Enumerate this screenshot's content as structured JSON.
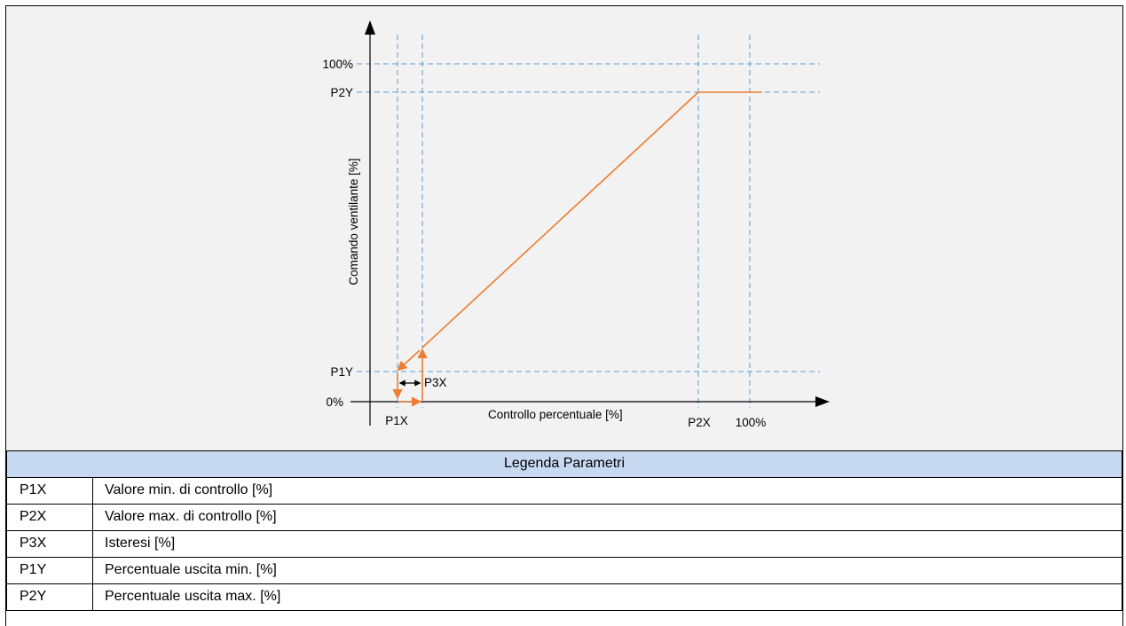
{
  "diagram": {
    "y_axis_label": "Comando ventilante [%]",
    "x_axis_label": "Controllo percentuale [%]",
    "y_ticks": {
      "p100": "100%",
      "p2y": "P2Y",
      "p1y": "P1Y",
      "p0": "0%"
    },
    "x_ticks": {
      "p1x": "P1X",
      "p2x": "P2X",
      "p100": "100%"
    },
    "hysteresis_label": "P3X",
    "colors": {
      "curve": "#ed7d31",
      "guides": "#5b9bd5",
      "axis": "#000000",
      "header_bg": "#c6d9f1",
      "chart_bg": "#f2f2f2"
    }
  },
  "legend": {
    "title": "Legenda Parametri",
    "rows": [
      {
        "code": "P1X",
        "desc": "Valore min. di controllo [%]"
      },
      {
        "code": "P2X",
        "desc": "Valore max. di controllo [%]"
      },
      {
        "code": "P3X",
        "desc": "Isteresi [%]"
      },
      {
        "code": "P1Y",
        "desc": "Percentuale uscita min. [%]"
      },
      {
        "code": "P2Y",
        "desc": "Percentuale uscita max. [%]"
      }
    ]
  }
}
